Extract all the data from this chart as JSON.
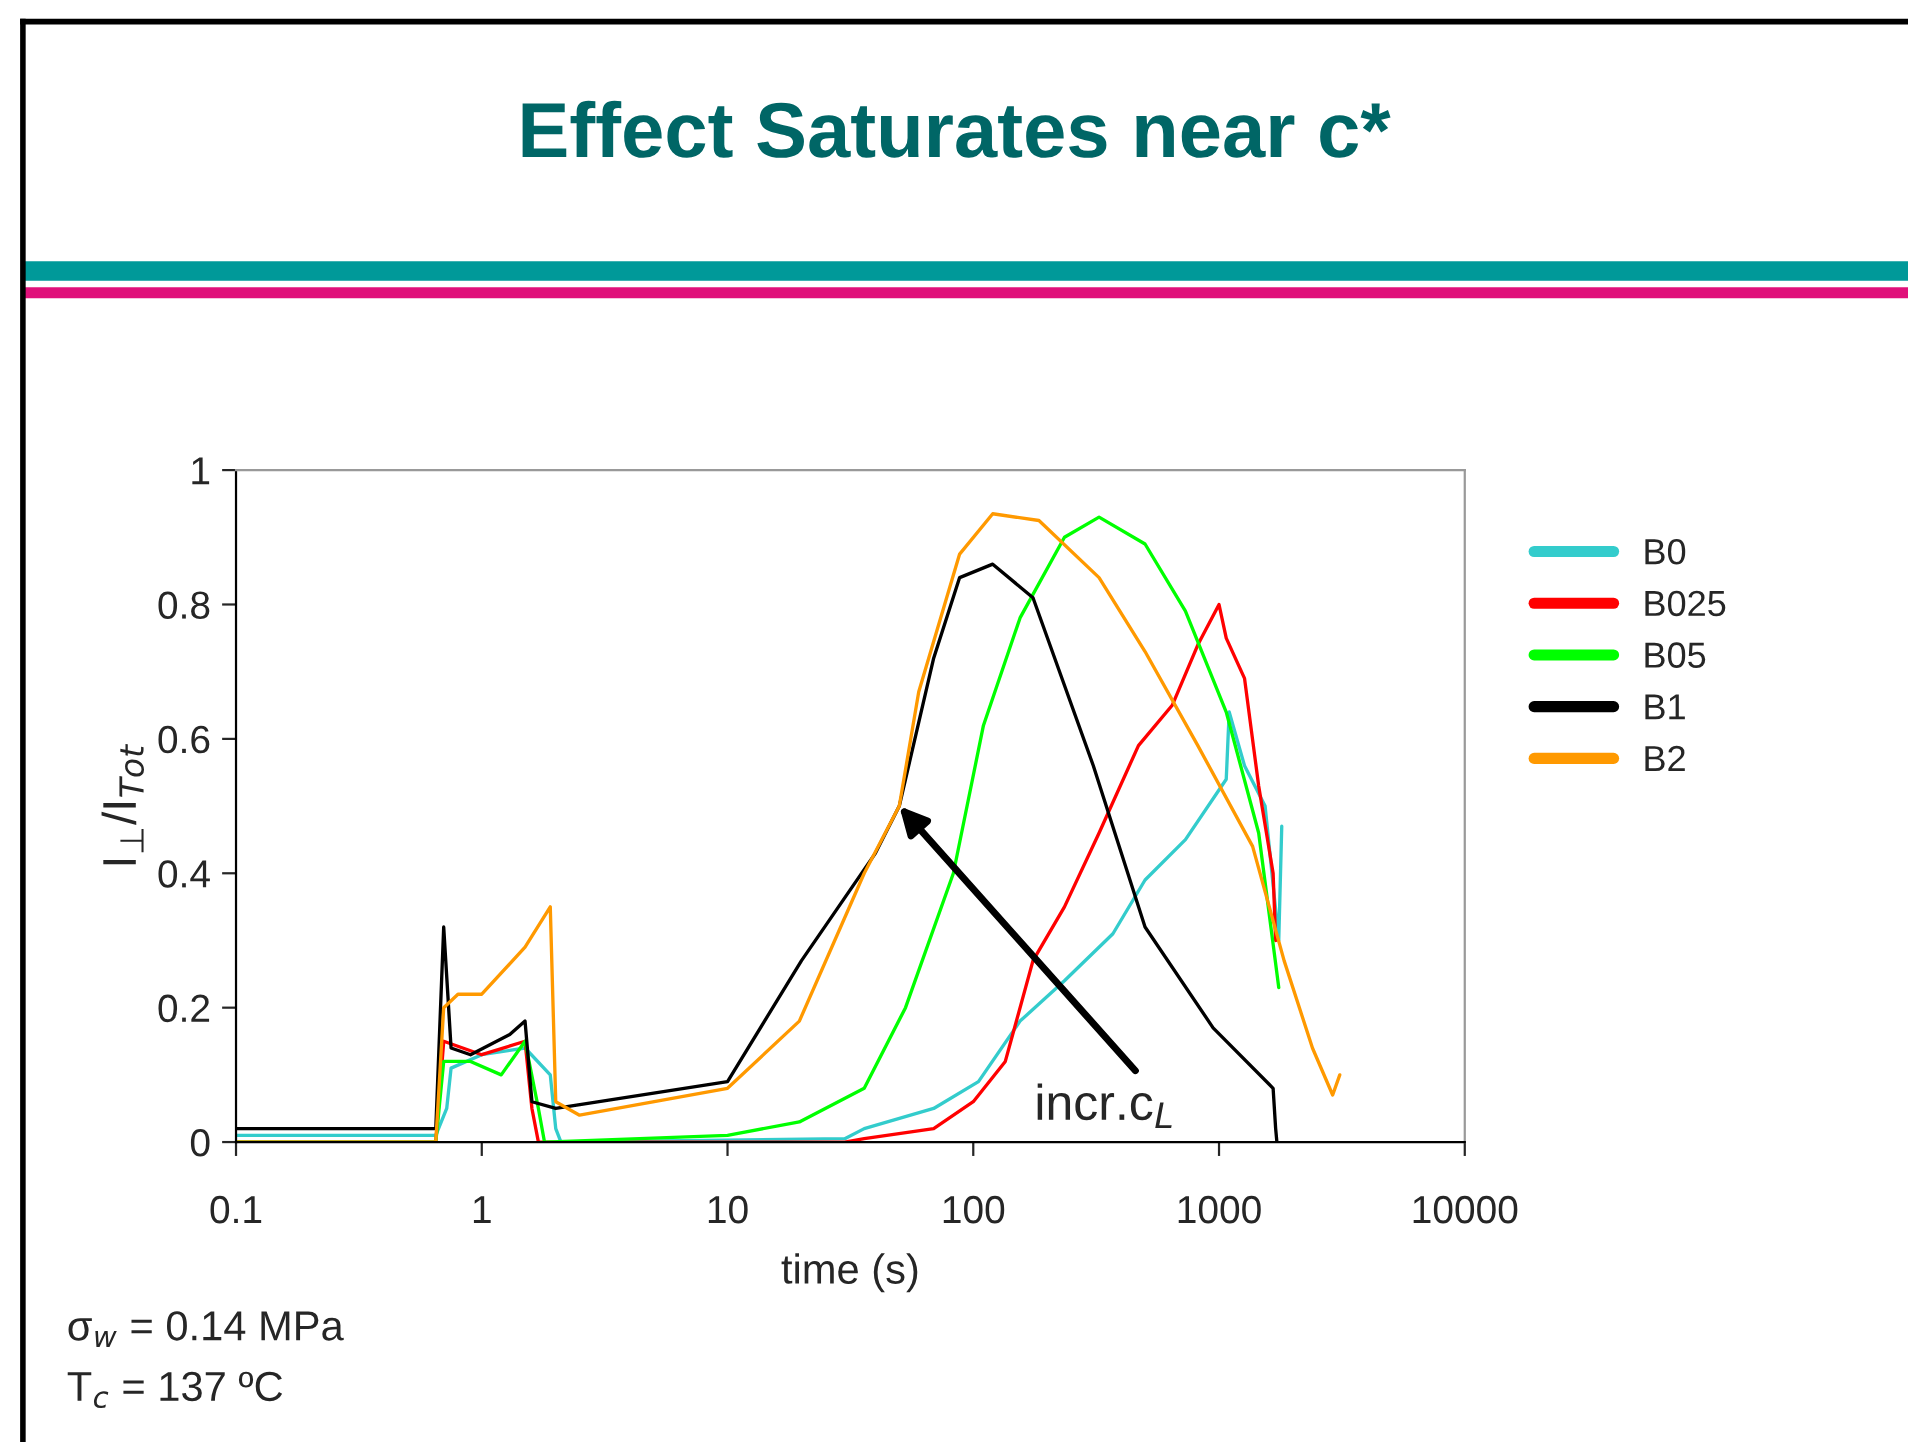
{
  "chart_data": {
    "type": "line",
    "title": "Effect Saturates near c*",
    "xlabel": "time (s)",
    "ylabel": "I$_{⊥}$/I$_{Tot}$",
    "log": "x",
    "xlim": [
      0.1,
      10000
    ],
    "xticks": [
      0.1,
      1,
      10,
      100,
      1000,
      10000
    ],
    "ylim": [
      0,
      1
    ],
    "yticks": [
      0,
      0.2,
      0.4,
      0.6,
      0.8,
      1
    ],
    "grid": false,
    "legend": "right",
    "marker": "none",
    "line_style": "solid",
    "annotations": [
      {
        "text": "incr.c$_{L}$",
        "x": 50,
        "y": 0.5
      },
      "σ$_{w}$ = 0.14 MPa",
      "T$_{c}$ = 137 ºC"
    ],
    "series": [
      {
        "name": "B0",
        "color": "#33cccc",
        "x": [
          0.1,
          0.65,
          0.72,
          0.75,
          1.0,
          1.5,
          1.9,
          2.0,
          2.1,
          30,
          36,
          69,
          105,
          155,
          235,
          370,
          500,
          730,
          1070,
          1100,
          1270,
          1540,
          1750,
          1800
        ],
        "values": [
          0.01,
          0.01,
          0.05,
          0.11,
          0.13,
          0.14,
          0.1,
          0.02,
          0,
          0.005,
          0.02,
          0.05,
          0.09,
          0.18,
          0.24,
          0.31,
          0.39,
          0.45,
          0.54,
          0.64,
          0.56,
          0.5,
          0.3,
          0.47
        ]
      },
      {
        "name": "B025",
        "color": "#ff0000",
        "x": [
          0.1,
          0.65,
          0.7,
          1.0,
          1.5,
          1.6,
          1.7,
          30,
          36,
          69,
          100,
          135,
          175,
          235,
          325,
          470,
          645,
          820,
          1000,
          1070,
          1270,
          1450,
          1660,
          1700
        ],
        "values": [
          0,
          0,
          0.15,
          0.13,
          0.15,
          0.05,
          0,
          0,
          0.005,
          0.02,
          0.06,
          0.12,
          0.27,
          0.35,
          0.46,
          0.59,
          0.65,
          0.74,
          0.8,
          0.75,
          0.69,
          0.53,
          0.4,
          0.3
        ]
      },
      {
        "name": "B05",
        "color": "#00ff00",
        "x": [
          0.1,
          0.65,
          0.7,
          0.9,
          1.2,
          1.5,
          1.7,
          1.8,
          10,
          19.6,
          36,
          53,
          83,
          110,
          155,
          235,
          325,
          500,
          730,
          1070,
          1450,
          1750
        ],
        "values": [
          0,
          0,
          0.12,
          0.12,
          0.1,
          0.15,
          0.05,
          0,
          0.01,
          0.03,
          0.08,
          0.2,
          0.4,
          0.62,
          0.78,
          0.9,
          0.93,
          0.89,
          0.79,
          0.64,
          0.46,
          0.23
        ]
      },
      {
        "name": "B1",
        "color": "#000000",
        "x": [
          0.1,
          0.65,
          0.7,
          0.75,
          0.9,
          1.3,
          1.5,
          1.6,
          2.0,
          10,
          20,
          40,
          50,
          69,
          88,
          120,
          175,
          308,
          500,
          946,
          1660,
          1700,
          1720
        ],
        "values": [
          0.02,
          0.02,
          0.32,
          0.14,
          0.13,
          0.16,
          0.18,
          0.06,
          0.05,
          0.09,
          0.27,
          0.43,
          0.5,
          0.72,
          0.84,
          0.86,
          0.81,
          0.56,
          0.32,
          0.17,
          0.08,
          0.02,
          0
        ]
      },
      {
        "name": "B2",
        "color": "#ff9900",
        "x": [
          0.1,
          0.65,
          0.7,
          0.8,
          1.0,
          1.5,
          1.9,
          2.0,
          2.5,
          10,
          19.6,
          36,
          50,
          60,
          88,
          120,
          185,
          325,
          500,
          820,
          1370,
          1840,
          2400,
          2900,
          3100
        ],
        "values": [
          0,
          0,
          0.2,
          0.22,
          0.22,
          0.29,
          0.35,
          0.06,
          0.04,
          0.08,
          0.18,
          0.4,
          0.5,
          0.67,
          0.875,
          0.935,
          0.925,
          0.84,
          0.73,
          0.59,
          0.44,
          0.27,
          0.14,
          0.07,
          0.1
        ]
      }
    ]
  }
}
